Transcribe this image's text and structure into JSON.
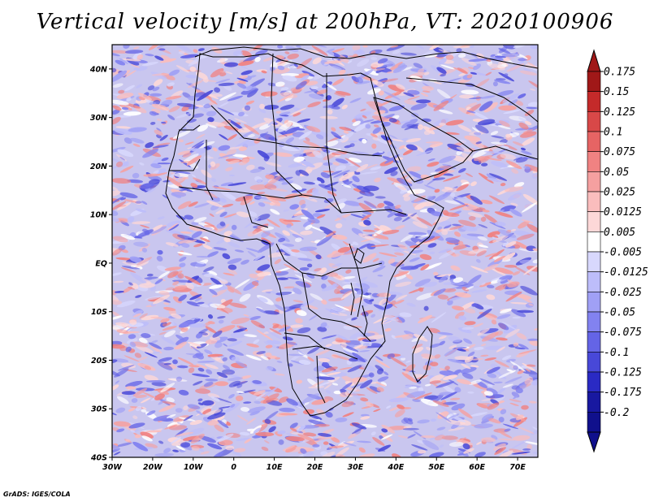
{
  "title": "Vertical velocity [m/s] at 200hPa, VT: 2020100906",
  "credit": "GrADS: IGES/COLA",
  "map": {
    "region": "Africa",
    "lon_range": [
      -30,
      75
    ],
    "lat_range": [
      -40,
      45
    ],
    "lon_ticks": [
      "30W",
      "20W",
      "10W",
      "0",
      "10E",
      "20E",
      "30E",
      "40E",
      "50E",
      "60E",
      "70E"
    ],
    "lat_ticks": [
      "40N",
      "30N",
      "20N",
      "10N",
      "EQ",
      "10S",
      "20S",
      "30S",
      "40S"
    ],
    "field": "vertical velocity",
    "level": "200hPa",
    "valid_time": "2020100906"
  },
  "colorbar": {
    "levels": [
      "0.175",
      "0.15",
      "0.125",
      "0.1",
      "0.075",
      "0.05",
      "0.025",
      "0.0125",
      "0.005",
      "-0.005",
      "-0.0125",
      "-0.025",
      "-0.05",
      "-0.075",
      "-0.1",
      "-0.125",
      "-0.175",
      "-0.2"
    ],
    "colors": [
      "#a01818",
      "#c42a2a",
      "#d84848",
      "#e66464",
      "#f08282",
      "#f5a0a0",
      "#fabdbd",
      "#fdd8d8",
      "#ffffff",
      "#d8d8fd",
      "#bdbdfa",
      "#a0a0f5",
      "#8282f0",
      "#6464e6",
      "#4848d8",
      "#2a2ac4",
      "#1818a0",
      "#10108c"
    ]
  },
  "chart_data": {
    "type": "heatmap",
    "title": "Vertical velocity [m/s] at 200hPa, VT: 2020100906",
    "x_ticks": [
      "30W",
      "20W",
      "10W",
      "0",
      "10E",
      "20E",
      "30E",
      "40E",
      "50E",
      "60E",
      "70E"
    ],
    "y_ticks": [
      "40N",
      "30N",
      "20N",
      "10N",
      "EQ",
      "10S",
      "20S",
      "30S",
      "40S"
    ],
    "x_range_deg": [
      -30,
      75
    ],
    "y_range_deg": [
      -40,
      45
    ],
    "units": "m/s",
    "colorbar_levels": [
      0.175,
      0.15,
      0.125,
      0.1,
      0.075,
      0.05,
      0.025,
      0.0125,
      0.005,
      -0.005,
      -0.0125,
      -0.025,
      -0.05,
      -0.075,
      -0.1,
      -0.125,
      -0.175,
      -0.2
    ]
  }
}
